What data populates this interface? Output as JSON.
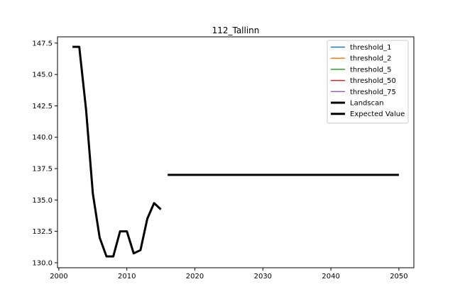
{
  "chart_data": {
    "type": "line",
    "title": "112_Tallinn",
    "xlabel": "",
    "ylabel": "",
    "xlim": [
      1999.8,
      2052.2
    ],
    "ylim": [
      129.6,
      148.0
    ],
    "xticks": [
      2000,
      2010,
      2020,
      2030,
      2040,
      2050
    ],
    "xtick_labels": [
      "2000",
      "2010",
      "2020",
      "2030",
      "2040",
      "2050"
    ],
    "yticks": [
      130.0,
      132.5,
      135.0,
      137.5,
      140.0,
      142.5,
      145.0,
      147.5
    ],
    "ytick_labels": [
      "130.0",
      "132.5",
      "135.0",
      "137.5",
      "140.0",
      "142.5",
      "145.0",
      "147.5"
    ],
    "grid": false,
    "legend_position": "top-right",
    "series": [
      {
        "name": "threshold_1",
        "color": "#1f77b4",
        "linewidth": "thin",
        "x": [],
        "y": []
      },
      {
        "name": "threshold_2",
        "color": "#ff7f0e",
        "linewidth": "thin",
        "x": [],
        "y": []
      },
      {
        "name": "threshold_5",
        "color": "#2ca02c",
        "linewidth": "thin",
        "x": [],
        "y": []
      },
      {
        "name": "threshold_50",
        "color": "#d62728",
        "linewidth": "thin",
        "x": [],
        "y": []
      },
      {
        "name": "threshold_75",
        "color": "#9467bd",
        "linewidth": "thin",
        "x": [],
        "y": []
      },
      {
        "name": "Landscan",
        "color": "#000000",
        "linewidth": "thick",
        "x": [
          2002,
          2003,
          2004,
          2005,
          2006,
          2007,
          2008,
          2009,
          2010,
          2011,
          2012,
          2013,
          2014,
          2015
        ],
        "y": [
          147.2,
          147.2,
          142.2,
          135.5,
          132.0,
          130.5,
          130.5,
          132.5,
          132.5,
          130.75,
          131.0,
          133.5,
          134.75,
          134.25
        ]
      },
      {
        "name": "Expected Value",
        "color": "#000000",
        "linewidth": "thick",
        "x": [
          2016,
          2050
        ],
        "y": [
          137.0,
          137.0
        ]
      }
    ]
  }
}
